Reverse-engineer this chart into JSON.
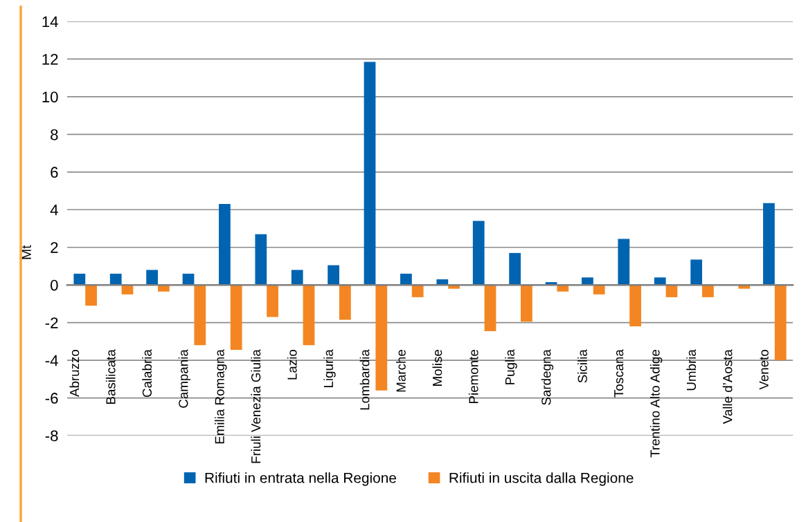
{
  "chart_data": {
    "type": "bar",
    "ylabel": "Mt",
    "categories": [
      "Abruzzo",
      "Basilicata",
      "Calabria",
      "Campania",
      "Emilia Romagna",
      "Friuli Venezia Giulia",
      "Lazio",
      "Liguria",
      "Lombardia",
      "Marche",
      "Molise",
      "Piemonte",
      "Puglia",
      "Sardegna",
      "Sicilia",
      "Toscana",
      "Trentino Alto Adige",
      "Umbria",
      "Valle d’Aosta",
      "Veneto"
    ],
    "series": [
      {
        "name": "Rifiuti in entrata nella Regione",
        "color": "#0064b1",
        "values": [
          0.6,
          0.6,
          0.8,
          0.6,
          4.3,
          2.7,
          0.8,
          1.05,
          11.85,
          0.6,
          0.3,
          3.4,
          1.7,
          0.15,
          0.4,
          2.45,
          0.4,
          1.35,
          0,
          4.35
        ]
      },
      {
        "name": "Rifiuti in uscita dalla Regione",
        "color": "#f38622",
        "values": [
          -1.1,
          -0.5,
          -0.35,
          -3.2,
          -3.45,
          -1.7,
          -3.2,
          -1.85,
          -5.6,
          -0.65,
          -0.2,
          -2.45,
          -1.95,
          -0.35,
          -0.5,
          -2.2,
          -0.65,
          -0.65,
          -0.2,
          -4.0
        ]
      }
    ],
    "ylim": [
      -8,
      14
    ],
    "yticks": [
      -8,
      -6,
      -4,
      -2,
      0,
      2,
      4,
      6,
      8,
      10,
      12,
      14
    ],
    "grid": "y",
    "legend": "bottom"
  }
}
